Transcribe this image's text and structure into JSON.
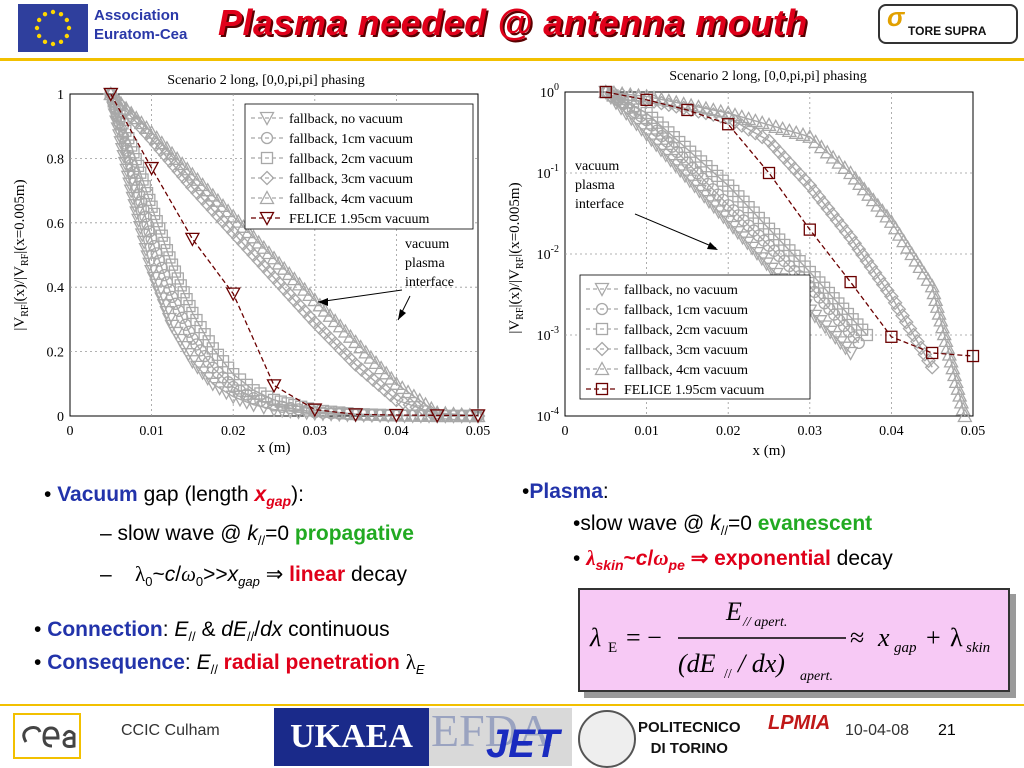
{
  "header": {
    "association": "Association",
    "euratom": "Euratom-Cea",
    "title": "Plasma needed @ antenna mouth",
    "tore_supra": "TORE SUPRA"
  },
  "chart_data": [
    {
      "type": "line",
      "title": "Scenario 2 long, [0,0,pi,pi] phasing",
      "xlabel": "x (m)",
      "ylabel": "|V_RF|(x)/|V_RF|(x=0.005m)",
      "xlim": [
        0,
        0.05
      ],
      "ylim": [
        0,
        1
      ],
      "yscale": "linear",
      "xticks": [
        "0",
        "0.01",
        "0.02",
        "0.03",
        "0.04",
        "0.05"
      ],
      "yticks": [
        "0",
        "0.2",
        "0.4",
        "0.6",
        "0.8",
        "1"
      ],
      "legend_position": "top-right",
      "series": [
        {
          "name": "fallback, no vacuum",
          "marker": "triangle-down",
          "color": "#a8a8a8",
          "x": [
            0.005,
            0.0075,
            0.01,
            0.0125,
            0.015,
            0.0175,
            0.02,
            0.0225,
            0.025,
            0.03,
            0.035,
            0.04,
            0.045,
            0.05
          ],
          "y": [
            1.0,
            0.7,
            0.45,
            0.28,
            0.17,
            0.1,
            0.06,
            0.035,
            0.02,
            0.008,
            0.003,
            0.001,
            0,
            0
          ]
        },
        {
          "name": "fallback, 1cm vacuum",
          "marker": "circle",
          "color": "#a8a8a8",
          "x": [
            0.005,
            0.0075,
            0.01,
            0.0125,
            0.015,
            0.0175,
            0.02,
            0.0225,
            0.025,
            0.03,
            0.035,
            0.04,
            0.045,
            0.05
          ],
          "y": [
            1.0,
            0.78,
            0.55,
            0.37,
            0.24,
            0.15,
            0.09,
            0.055,
            0.033,
            0.012,
            0.004,
            0.001,
            0,
            0
          ]
        },
        {
          "name": "fallback, 2cm vacuum",
          "marker": "square",
          "color": "#a8a8a8",
          "x": [
            0.005,
            0.0075,
            0.01,
            0.0125,
            0.015,
            0.0175,
            0.02,
            0.0225,
            0.025,
            0.03,
            0.035,
            0.04,
            0.045,
            0.05
          ],
          "y": [
            1.0,
            0.84,
            0.65,
            0.47,
            0.32,
            0.21,
            0.13,
            0.08,
            0.05,
            0.018,
            0.006,
            0.002,
            0,
            0
          ]
        },
        {
          "name": "fallback, 3cm vacuum",
          "marker": "diamond",
          "color": "#a8a8a8",
          "x": [
            0.005,
            0.01,
            0.015,
            0.02,
            0.025,
            0.03,
            0.035,
            0.04,
            0.045,
            0.05
          ],
          "y": [
            1.0,
            0.86,
            0.71,
            0.57,
            0.43,
            0.29,
            0.16,
            0.05,
            0.005,
            0
          ]
        },
        {
          "name": "fallback, 4cm vacuum",
          "marker": "triangle-up",
          "color": "#a8a8a8",
          "x": [
            0.005,
            0.01,
            0.015,
            0.02,
            0.025,
            0.03,
            0.035,
            0.04,
            0.045,
            0.05
          ],
          "y": [
            1.0,
            0.88,
            0.75,
            0.62,
            0.49,
            0.36,
            0.23,
            0.1,
            0.01,
            0
          ]
        },
        {
          "name": "FELICE 1.95cm vacuum",
          "marker": "triangle-down",
          "color": "#6b0000",
          "dashed": true,
          "x": [
            0.005,
            0.01,
            0.015,
            0.02,
            0.025,
            0.03,
            0.035,
            0.04,
            0.045,
            0.05
          ],
          "y": [
            1.0,
            0.77,
            0.55,
            0.38,
            0.095,
            0.02,
            0.005,
            0.003,
            0.002,
            0.002
          ]
        }
      ],
      "annotation": [
        "vacuum",
        "plasma",
        "interface"
      ]
    },
    {
      "type": "line",
      "title": "Scenario 2 long, [0,0,pi,pi] phasing",
      "xlabel": "x (m)",
      "ylabel": "|V_RF|(x)/|V_RF|(x=0.005m)",
      "xlim": [
        0,
        0.05
      ],
      "ylim": [
        0.0001,
        1
      ],
      "yscale": "log",
      "xticks": [
        "0",
        "0.01",
        "0.02",
        "0.03",
        "0.04",
        "0.05"
      ],
      "yticks": [
        "10^-4",
        "10^-3",
        "10^-2",
        "10^-1",
        "10^0"
      ],
      "legend_position": "bottom-center",
      "series": [
        {
          "name": "fallback, no vacuum",
          "marker": "triangle-down",
          "color": "#a8a8a8",
          "x": [
            0.005,
            0.01,
            0.02,
            0.03,
            0.035
          ],
          "y": [
            1.0,
            0.3,
            0.025,
            0.002,
            0.0006
          ]
        },
        {
          "name": "fallback, 1cm vacuum",
          "marker": "circle",
          "color": "#a8a8a8",
          "x": [
            0.005,
            0.01,
            0.02,
            0.03,
            0.036
          ],
          "y": [
            1.0,
            0.45,
            0.04,
            0.004,
            0.0008
          ]
        },
        {
          "name": "fallback, 2cm vacuum",
          "marker": "square",
          "color": "#a8a8a8",
          "x": [
            0.005,
            0.01,
            0.02,
            0.03,
            0.037
          ],
          "y": [
            1.0,
            0.55,
            0.07,
            0.006,
            0.001
          ]
        },
        {
          "name": "fallback, 3cm vacuum",
          "marker": "diamond",
          "color": "#a8a8a8",
          "x": [
            0.005,
            0.01,
            0.02,
            0.025,
            0.03,
            0.035,
            0.04,
            0.045
          ],
          "y": [
            1.0,
            0.8,
            0.48,
            0.25,
            0.07,
            0.016,
            0.003,
            0.0004
          ]
        },
        {
          "name": "fallback, 4cm vacuum",
          "marker": "triangle-up",
          "color": "#a8a8a8",
          "x": [
            0.005,
            0.01,
            0.02,
            0.03,
            0.035,
            0.04,
            0.045,
            0.049
          ],
          "y": [
            1.0,
            0.88,
            0.55,
            0.28,
            0.1,
            0.025,
            0.004,
            0.0001
          ]
        },
        {
          "name": "FELICE 1.95cm vacuum",
          "marker": "square",
          "color": "#6b0000",
          "dashed": true,
          "x": [
            0.005,
            0.01,
            0.015,
            0.02,
            0.025,
            0.03,
            0.035,
            0.04,
            0.045,
            0.05
          ],
          "y": [
            1.0,
            0.8,
            0.6,
            0.4,
            0.1,
            0.02,
            0.0045,
            0.00095,
            0.0006,
            0.00055
          ]
        }
      ],
      "annotation": [
        "vacuum",
        "plasma",
        "interface"
      ]
    }
  ],
  "bullets": {
    "vacuum": {
      "word": "Vacuum",
      "text1": " gap (length ",
      "x": "x",
      "gap": "gap",
      "text2": "):",
      "sub1_pre": "–  slow wave @ ",
      "k": "k",
      "par": "//",
      "eq0": "=0 ",
      "propagative": "propagative",
      "sub2_dash": "–",
      "lambda": "λ",
      "zero": "0",
      "tilde": "~",
      "c": "c",
      "slash": "/",
      "omega": "ω",
      "gg": ">>",
      "xgap_x": "x",
      "xgap_sub": "gap",
      "implies": " ⇒ ",
      "linear": "linear",
      "decay": " decay"
    },
    "plasma": {
      "word": "Plasma",
      "colon": ":",
      "sub1_pre": "•slow wave @ ",
      "k": "k",
      "par": "//",
      "eq0": "=0 ",
      "evanescent": "evanescent",
      "sub2_dot": "• ",
      "lambda": "λ",
      "skin": "skin",
      "tilde": "~",
      "c": "c",
      "slash": "/",
      "omega": "ω",
      "pe": "pe",
      "implies": " ⇒ ",
      "exponential": "exponential",
      "decay": " decay"
    },
    "connection": {
      "word": "Connection",
      "colon": ": ",
      "E": "E",
      "par": "//",
      "amp": " & ",
      "dE": "dE",
      "par2": "//",
      "slash": "/",
      "dx": "dx",
      "cont": " continuous"
    },
    "consequence": {
      "word": "Consequence",
      "colon": ": ",
      "E": "E",
      "par": "//",
      "radial": " radial penetration ",
      "lambda": "λ",
      "Esub": "E"
    }
  },
  "formula": {
    "lhs": "λ",
    "lhs_sub": "E",
    "eq": "= −",
    "num": "E",
    "num_sub": "// apert.",
    "den": "(dE",
    "den_sub": "//",
    "den2": " / dx)",
    "den_sub2": "apert.",
    "approx": "≈",
    "x": "x",
    "x_sub": "gap",
    "plus": "+",
    "lam": "λ",
    "lam_sub": "skin"
  },
  "footer": {
    "venue": "CCIC Culham",
    "ukaea": "UKAEA",
    "efda": "EFDA",
    "jet": "JET",
    "polito1": "POLITECNICO",
    "polito2": "DI TORINO",
    "lpmia": "LPMIA",
    "date": "10-04-08",
    "page": "21"
  }
}
